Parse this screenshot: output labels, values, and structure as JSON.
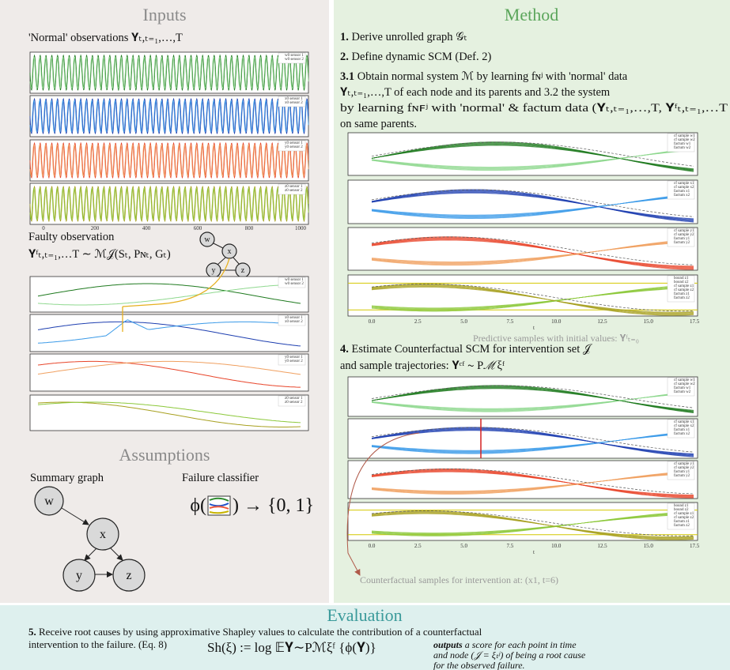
{
  "inputs": {
    "title": "Inputs",
    "normal_label": "'Normal' observations 𝐘ₜ,ₜ₌₁,…,T",
    "normal_legends": [
      [
        "w0 sensor 1",
        "w0 sensor 2"
      ],
      [
        "x0 sensor 1",
        "x0 sensor 2"
      ],
      [
        "y0 sensor 1",
        "y0 sensor 2"
      ],
      [
        "z0 sensor 1",
        "z0 sensor 2"
      ]
    ],
    "normal_xticks": [
      "0",
      "200",
      "400",
      "600",
      "800",
      "1000"
    ],
    "faulty_label": "Faulty observation",
    "faulty_formula": "𝐘ᶠₜ,ₜ₌₁,…T ∼ ℳ𝒥(Sₜ, Pɴₜ, Gₜ)",
    "faulty_legends": [
      [
        "w0 sensor 1",
        "w0 sensor 2"
      ],
      [
        "x0 sensor 1",
        "x0 sensor 2"
      ],
      [
        "y0 sensor 1",
        "y0 sensor 2"
      ],
      [
        "z0 sensor 1",
        "z0 sensor 2"
      ]
    ],
    "graph_nodes": [
      "w",
      "x",
      "y",
      "z"
    ]
  },
  "assumptions": {
    "title": "Assumptions",
    "summary_graph": "Summary graph",
    "nodes": [
      "w",
      "x",
      "y",
      "z"
    ],
    "classifier": "Failure classifier",
    "classifier_prefix": "ϕ(",
    "classifier_suffix": ") → {0, 1}"
  },
  "method": {
    "title": "Method",
    "step1": {
      "number": "1.",
      "text": "Derive unrolled graph 𝒢ₜ"
    },
    "step2": {
      "number": "2.",
      "text": "Define dynamic SCM (Def. 2)"
    },
    "step3": {
      "number": "3.1",
      "lines": [
        "Obtain normal system ℳ by learning fɴʲ with 'normal' data",
        "𝐘ₜ,ₜ₌₁,…,T  of each node and its parents and 3.2 the system",
        "by learning fɴꜰʲ with 'normal' & factum data (𝐘ₜ,ₜ₌₁,…,T, 𝐘ᶠₜ,ₜ₌₁,…T",
        "on same parents."
      ]
    },
    "predictive": {
      "legends": [
        [
          "cf sample w1",
          "cf sample w2",
          "factum w1",
          "factum w2"
        ],
        [
          "cf sample x1",
          "cf sample x2",
          "factum x1",
          "factum x2"
        ],
        [
          "cf sample y1",
          "cf sample y2",
          "factum y1",
          "factum y2"
        ],
        [
          "bound z1",
          "bound z2",
          "cf sample z1",
          "cf sample z2",
          "factum z1",
          "factum z2"
        ]
      ],
      "xticks": [
        "0.0",
        "2.5",
        "5.0",
        "7.5",
        "10.0",
        "12.5",
        "15.0",
        "17.5"
      ],
      "xlabel": "t",
      "caption": "Predictive samples with initial values: 𝐘ᶠₜ₌₀"
    },
    "step4": {
      "number": "4.",
      "lines": [
        "Estimate Counterfactual SCM for intervention set 𝒥",
        "and sample trajectories: 𝐘ᶜᶠ ∼ Pℳξᶠ"
      ]
    },
    "counterfactual": {
      "legends": [
        [
          "cf sample w1",
          "cf sample w2",
          "factum w1",
          "factum w2"
        ],
        [
          "cf sample x1",
          "cf sample x2",
          "factum x1",
          "factum x2"
        ],
        [
          "cf sample y1",
          "cf sample y2",
          "factum y1",
          "factum y2"
        ],
        [
          "bound z1",
          "bound z2",
          "cf sample z1",
          "cf sample z2",
          "factum z1",
          "factum z2"
        ]
      ],
      "xticks": [
        "0.0",
        "2.5",
        "5.0",
        "7.5",
        "10.0",
        "12.5",
        "15.0",
        "17.5"
      ],
      "xlabel": "t",
      "caption": "Counterfactual samples for intervention at: (x1, t=6)"
    }
  },
  "evaluation": {
    "title": "Evaluation",
    "number": "5.",
    "lines": [
      "Receive root causes by using approximative Shapley values to calculate the contribution of a counterfactual",
      "intervention to the failure. (Eq. 8)"
    ],
    "formula": "Sh(ξ) := log 𝔼𝐘∼Pℳξᶠ {ϕ(𝐘)}",
    "output_emph": "outputs",
    "output_lines": [
      " a score for each point in time",
      "and node (𝒥 = ξₜʲ) of being a root cause",
      "for the observed failure."
    ]
  }
}
